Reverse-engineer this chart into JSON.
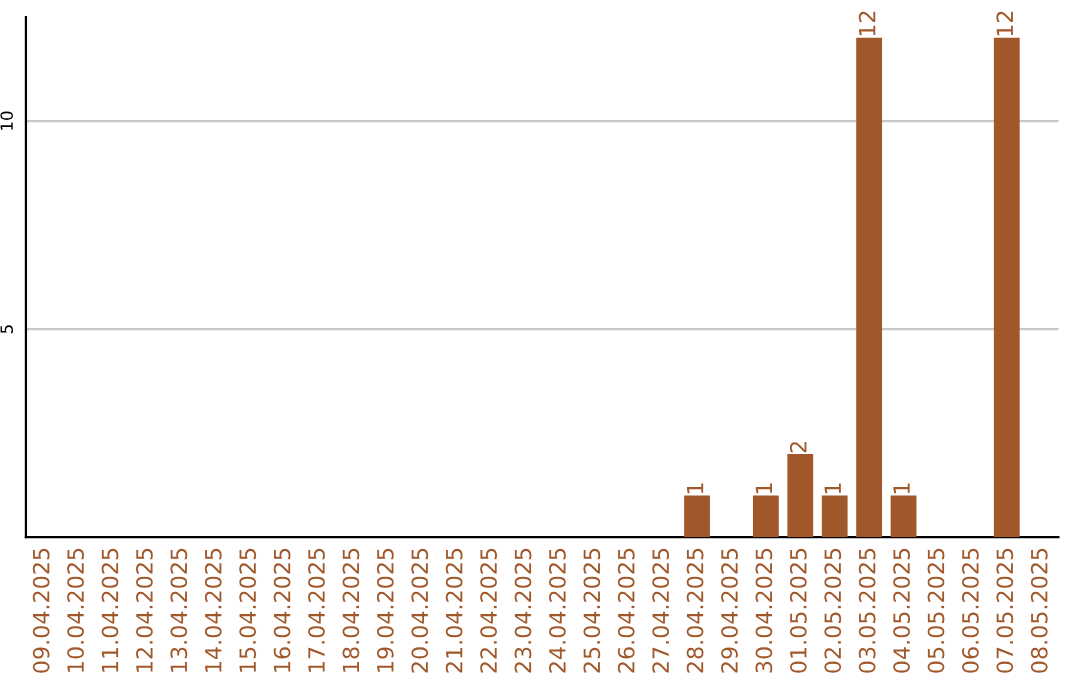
{
  "chart_data": {
    "type": "bar",
    "categories": [
      "09.04.2025",
      "10.04.2025",
      "11.04.2025",
      "12.04.2025",
      "13.04.2025",
      "14.04.2025",
      "15.04.2025",
      "16.04.2025",
      "17.04.2025",
      "18.04.2025",
      "19.04.2025",
      "20.04.2025",
      "21.04.2025",
      "22.04.2025",
      "23.04.2025",
      "24.04.2025",
      "25.04.2025",
      "26.04.2025",
      "27.04.2025",
      "28.04.2025",
      "29.04.2025",
      "30.04.2025",
      "01.05.2025",
      "02.05.2025",
      "03.05.2025",
      "04.05.2025",
      "05.05.2025",
      "06.05.2025",
      "07.05.2025",
      "08.05.2025"
    ],
    "values": [
      0,
      0,
      0,
      0,
      0,
      0,
      0,
      0,
      0,
      0,
      0,
      0,
      0,
      0,
      0,
      0,
      0,
      0,
      0,
      1,
      0,
      1,
      2,
      1,
      12,
      1,
      0,
      0,
      12,
      0
    ],
    "value_labels": [
      null,
      null,
      null,
      null,
      null,
      null,
      null,
      null,
      null,
      null,
      null,
      null,
      null,
      null,
      null,
      null,
      null,
      null,
      null,
      "1",
      null,
      "1",
      "2",
      "1",
      "12",
      "1",
      null,
      null,
      "12",
      null
    ],
    "color": "#a0582a",
    "ylim": [
      0,
      12.5
    ],
    "yticks": [
      5,
      10
    ],
    "grid": "y"
  }
}
